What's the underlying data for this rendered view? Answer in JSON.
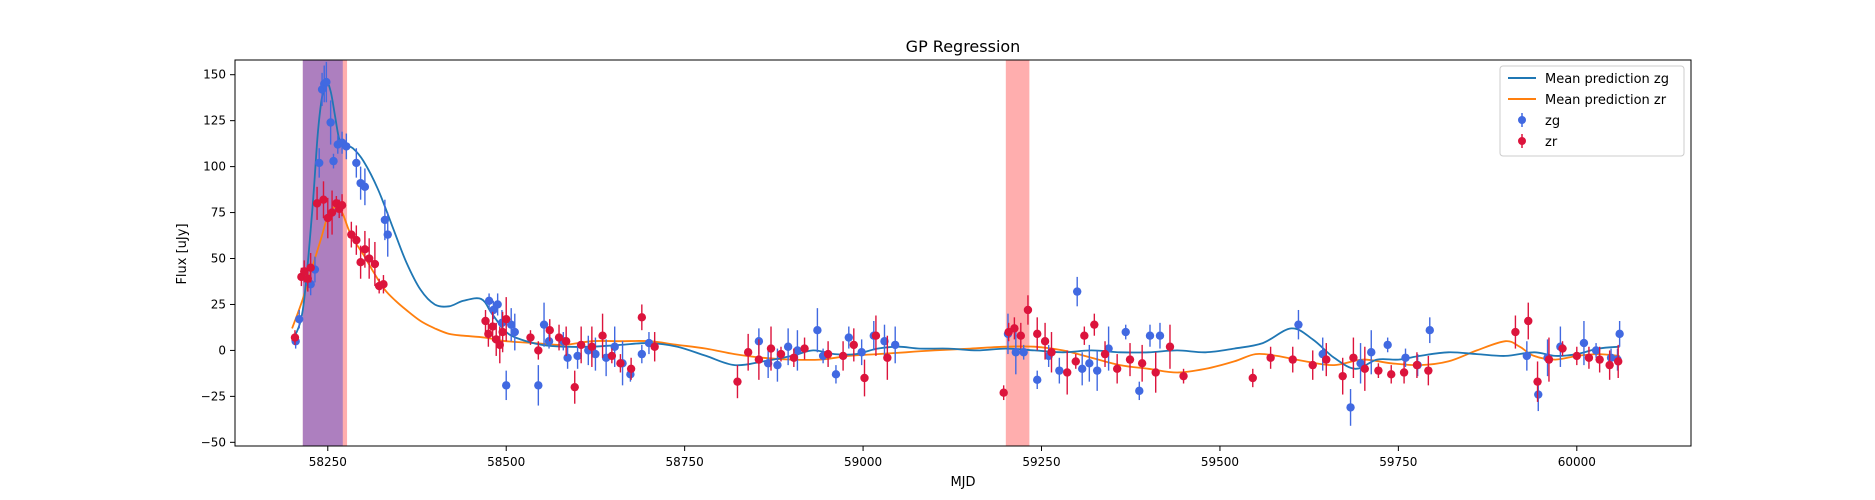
{
  "chart_data": {
    "type": "scatter",
    "title": "GP Regression",
    "xlabel": "MJD",
    "ylabel": "Flux [uJy]",
    "xlim": [
      58120,
      60160
    ],
    "ylim": [
      -52,
      158
    ],
    "x_ticks": [
      58250,
      58500,
      58750,
      59000,
      59250,
      59500,
      59750,
      60000
    ],
    "y_ticks": [
      -50,
      -25,
      0,
      25,
      50,
      75,
      100,
      125,
      150
    ],
    "grid": false,
    "legend_position": "top-right",
    "legend": [
      "Mean prediction zg",
      "Mean prediction zr",
      "zg",
      "zr"
    ],
    "colors": {
      "zg_line": "#1f77b4",
      "zr_line": "#ff7f0e",
      "zg_points": "#4169e1",
      "zr_points": "#dc143c",
      "span_zg": "#6a5acd",
      "span_zr": "#ff6b6b"
    },
    "shaded_regions": [
      {
        "series": "zr",
        "x0": 58215,
        "x1": 58277
      },
      {
        "series": "zg",
        "x0": 58215,
        "x1": 58271
      },
      {
        "series": "zr",
        "x0": 59200,
        "x1": 59233
      }
    ],
    "mean_prediction_zg": {
      "x": [
        58200,
        58215,
        58228,
        58236,
        58242,
        58248,
        58254,
        58260,
        58266,
        58273,
        58285,
        58300,
        58320,
        58340,
        58360,
        58380,
        58400,
        58420,
        58440,
        58465,
        58480,
        58500,
        58520,
        58550,
        58580,
        58620,
        58660,
        58700,
        58740,
        58780,
        58820,
        58860,
        58900,
        58930,
        58960,
        58990,
        59020,
        59050,
        59080,
        59120,
        59160,
        59200,
        59240,
        59280,
        59320,
        59360,
        59400,
        59440,
        59480,
        59520,
        59560,
        59600,
        59630,
        59660,
        59690,
        59720,
        59750,
        59780,
        59820,
        59860,
        59900,
        59940,
        59970,
        60000,
        60030,
        60060
      ],
      "y": [
        5,
        22,
        75,
        118,
        138,
        146,
        141,
        128,
        115,
        112,
        110,
        103,
        88,
        68,
        48,
        33,
        25,
        24,
        27,
        28,
        20,
        10,
        6,
        3,
        2,
        2,
        3,
        4,
        2,
        -3,
        -8,
        -6,
        -3,
        0,
        -2,
        -2,
        1,
        2,
        1,
        1,
        0,
        1,
        0,
        -1,
        0,
        -1,
        -1,
        0,
        -1,
        1,
        4,
        12,
        6,
        -4,
        -10,
        -5,
        -5,
        -3,
        -1,
        -2,
        -3,
        -1,
        -3,
        -2,
        1,
        2
      ]
    },
    "mean_prediction_zr": {
      "x": [
        58200,
        58215,
        58228,
        58240,
        58250,
        58260,
        58270,
        58280,
        58290,
        58300,
        58315,
        58330,
        58345,
        58360,
        58380,
        58400,
        58420,
        58440,
        58470,
        58500,
        58540,
        58580,
        58620,
        58660,
        58700,
        58740,
        58780,
        58820,
        58860,
        58900,
        58940,
        58980,
        59020,
        59060,
        59100,
        59150,
        59200,
        59240,
        59280,
        59320,
        59360,
        59400,
        59440,
        59480,
        59520,
        59550,
        59580,
        59620,
        59660,
        59700,
        59740,
        59780,
        59820,
        59860,
        59900,
        59920,
        59940,
        59970,
        60000,
        60030,
        60060
      ],
      "y": [
        12,
        28,
        45,
        60,
        73,
        78,
        75,
        65,
        58,
        52,
        42,
        33,
        27,
        22,
        16,
        12,
        9,
        8,
        7,
        5,
        4,
        3,
        5,
        5,
        5,
        3,
        1,
        -2,
        -4,
        -5,
        -5,
        -3,
        -2,
        -1,
        0,
        1,
        2,
        2,
        0,
        -4,
        -8,
        -10,
        -12,
        -10,
        -6,
        -2,
        -3,
        -6,
        -8,
        -5,
        -7,
        -8,
        -6,
        0,
        5,
        2,
        -3,
        -5,
        -3,
        -2,
        -3
      ]
    },
    "zg_points": {
      "x": [
        58205,
        58210,
        58226,
        58232,
        58238,
        58242,
        58245,
        58248,
        58254,
        58258,
        58264,
        58270,
        58276,
        58290,
        58296,
        58302,
        58330,
        58334,
        58476,
        58482,
        58488,
        58494,
        58500,
        58507,
        58512,
        58545,
        58553,
        58560,
        58580,
        58586,
        58600,
        58615,
        58625,
        58640,
        58652,
        58663,
        58674,
        58690,
        58700,
        58854,
        58867,
        58880,
        58895,
        58908,
        58936,
        58944,
        58962,
        58980,
        58998,
        59015,
        59030,
        59045,
        59203,
        59214,
        59225,
        59244,
        59260,
        59275,
        59300,
        59307,
        59317,
        59328,
        59344,
        59368,
        59387,
        59402,
        59416,
        59610,
        59644,
        59683,
        59697,
        59712,
        59735,
        59760,
        59777,
        59794,
        59930,
        59946,
        59959,
        59977,
        60010,
        60027,
        60048,
        60057,
        60060
      ],
      "y": [
        5,
        17,
        36,
        44,
        102,
        142,
        145,
        146,
        124,
        103,
        112,
        113,
        111,
        102,
        91,
        89,
        71,
        63,
        27,
        22,
        25,
        15,
        -19,
        14,
        10,
        -19,
        14,
        5,
        5,
        -4,
        -3,
        0,
        -2,
        -4,
        2,
        -7,
        -13,
        -2,
        4,
        5,
        -7,
        -8,
        2,
        0,
        11,
        -3,
        -13,
        7,
        -1,
        8,
        5,
        3,
        9,
        -1,
        -1,
        -16,
        -3,
        -11,
        32,
        -10,
        -7,
        -11,
        1,
        10,
        -22,
        8,
        8,
        14,
        -2,
        -31,
        -7,
        -1,
        3,
        -4,
        -8,
        11,
        -3,
        -24,
        -4,
        2,
        4,
        0,
        -4,
        -5,
        9
      ]
    },
    "zr_points": {
      "x": [
        58204,
        58213,
        58217,
        58222,
        58226,
        58235,
        58244,
        58250,
        58256,
        58262,
        58266,
        58270,
        58283,
        58290,
        58296,
        58302,
        58308,
        58316,
        58322,
        58328,
        58471,
        58475,
        58481,
        58486,
        58491,
        58495,
        58500,
        58534,
        58545,
        58561,
        58574,
        58584,
        58596,
        58605,
        58620,
        58635,
        58648,
        58660,
        58675,
        58690,
        58708,
        58824,
        58839,
        58854,
        58871,
        58885,
        58903,
        58918,
        58951,
        58972,
        58987,
        59002,
        59018,
        59034,
        59197,
        59204,
        59212,
        59221,
        59231,
        59244,
        59255,
        59264,
        59286,
        59298,
        59310,
        59324,
        59339,
        59356,
        59374,
        59391,
        59410,
        59430,
        59449,
        59546,
        59571,
        59602,
        59630,
        59649,
        59672,
        59687,
        59703,
        59722,
        59740,
        59758,
        59776,
        59792,
        59914,
        59932,
        59945,
        59961,
        59980,
        60000,
        60017,
        60032,
        60046,
        60058
      ],
      "y": [
        7,
        40,
        43,
        39,
        45,
        80,
        82,
        72,
        75,
        80,
        77,
        79,
        63,
        60,
        48,
        55,
        50,
        47,
        35,
        36,
        16,
        9,
        13,
        6,
        3,
        10,
        17,
        7,
        0,
        11,
        7,
        5,
        -20,
        3,
        2,
        8,
        -3,
        -7,
        -10,
        18,
        2,
        -17,
        -1,
        -5,
        1,
        -2,
        -4,
        1,
        -2,
        -3,
        3,
        -15,
        8,
        -4,
        -23,
        10,
        12,
        8,
        22,
        9,
        5,
        -1,
        -12,
        -6,
        8,
        14,
        -2,
        -10,
        -5,
        -7,
        -12,
        2,
        -14,
        -15,
        -4,
        -5,
        -8,
        -5,
        -14,
        -4,
        -10,
        -11,
        -13,
        -12,
        -8,
        -11,
        10,
        16,
        -17,
        -5,
        1,
        -3,
        -4,
        -5,
        -8,
        -6
      ]
    }
  }
}
